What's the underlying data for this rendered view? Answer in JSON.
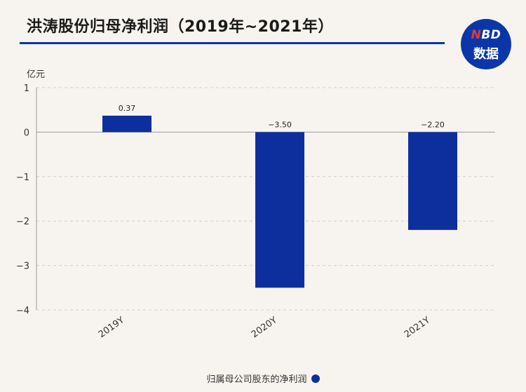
{
  "header": {
    "title": "洪涛股份归母净利润（2019年~2021年）"
  },
  "logo": {
    "letter_n": "N",
    "letters_bd": "BD",
    "label": "数据",
    "color": "#0b36a8"
  },
  "chart_data": {
    "type": "bar",
    "title": "洪涛股份归母净利润（2019年~2021年）",
    "ylabel": "亿元",
    "xlabel": "",
    "categories": [
      "2019Y",
      "2020Y",
      "2021Y"
    ],
    "series": [
      {
        "name": "归属母公司股东的净利润",
        "values": [
          0.37,
          -3.5,
          -2.2
        ],
        "value_labels": [
          "0.37",
          "−3.50",
          "−2.20"
        ],
        "color": "#0d2f9e"
      }
    ],
    "ylim": [
      -4,
      1
    ],
    "yticks": [
      1,
      0,
      -1,
      -2,
      -3,
      -4
    ],
    "ytick_labels": [
      "1",
      "0",
      "−1",
      "−2",
      "−3",
      "−4"
    ],
    "grid": true,
    "legend_position": "bottom-center"
  }
}
